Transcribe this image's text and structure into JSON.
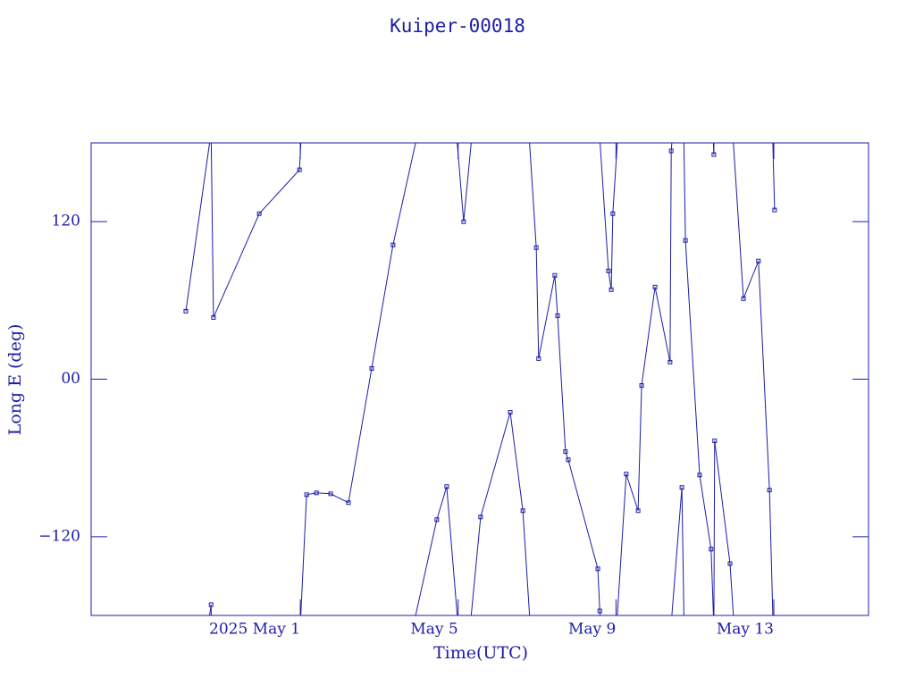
{
  "chart_data": {
    "type": "line",
    "title": "Kuiper-00018",
    "x_label": "Time(UTC)",
    "y_label": "Long E (deg)",
    "color": "#1c1ca8",
    "wrap": true,
    "xlim": [
      -4.3,
      15.4
    ],
    "ylim": [
      -180,
      180
    ],
    "xticks": [
      {
        "value": 1,
        "label": "2025 May  1"
      },
      {
        "value": 5,
        "label": "May  5"
      },
      {
        "value": 9,
        "label": "May  9"
      },
      {
        "value": 13,
        "label": "May 13"
      }
    ],
    "yticks": [
      {
        "value": -120,
        "label": "−120"
      },
      {
        "value": 0,
        "label": "00"
      },
      120
    ],
    "series": [
      {
        "name": "Kuiper-00018",
        "color": "#1c1ca8",
        "x": [
          -1.9,
          -1.26,
          -1.2,
          -0.04,
          0.98,
          1.16,
          1.41,
          1.77,
          2.22,
          2.81,
          3.35,
          4.46,
          4.71,
          5.14,
          5.57,
          6.32,
          6.64,
          6.98,
          7.04,
          7.45,
          7.52,
          7.72,
          7.79,
          8.54,
          8.59,
          8.81,
          8.88,
          8.92,
          9.26,
          9.56,
          9.65,
          9.99,
          10.37,
          10.4,
          10.67,
          10.76,
          11.12,
          11.41,
          11.48,
          11.5,
          11.89,
          12.23,
          12.61,
          12.89,
          13.02
        ],
        "values": [
          51.8,
          -171.8,
          47.0,
          126.1,
          159.5,
          -88.0,
          -86.6,
          -87.3,
          -94.1,
          8.2,
          102.3,
          -107.0,
          -81.8,
          120.0,
          -105.0,
          -25.2,
          -100.2,
          100.2,
          15.7,
          79.1,
          48.4,
          -55.2,
          -61.4,
          -144.5,
          -176.6,
          82.5,
          68.2,
          126.1,
          -72.3,
          -100.2,
          -4.8,
          70.2,
          13.0,
          173.9,
          -82.5,
          105.7,
          -73.0,
          -129.5,
          171.1,
          -47.0,
          -140.5,
          61.4,
          90.0,
          -84.5,
          128.9
        ]
      }
    ]
  }
}
